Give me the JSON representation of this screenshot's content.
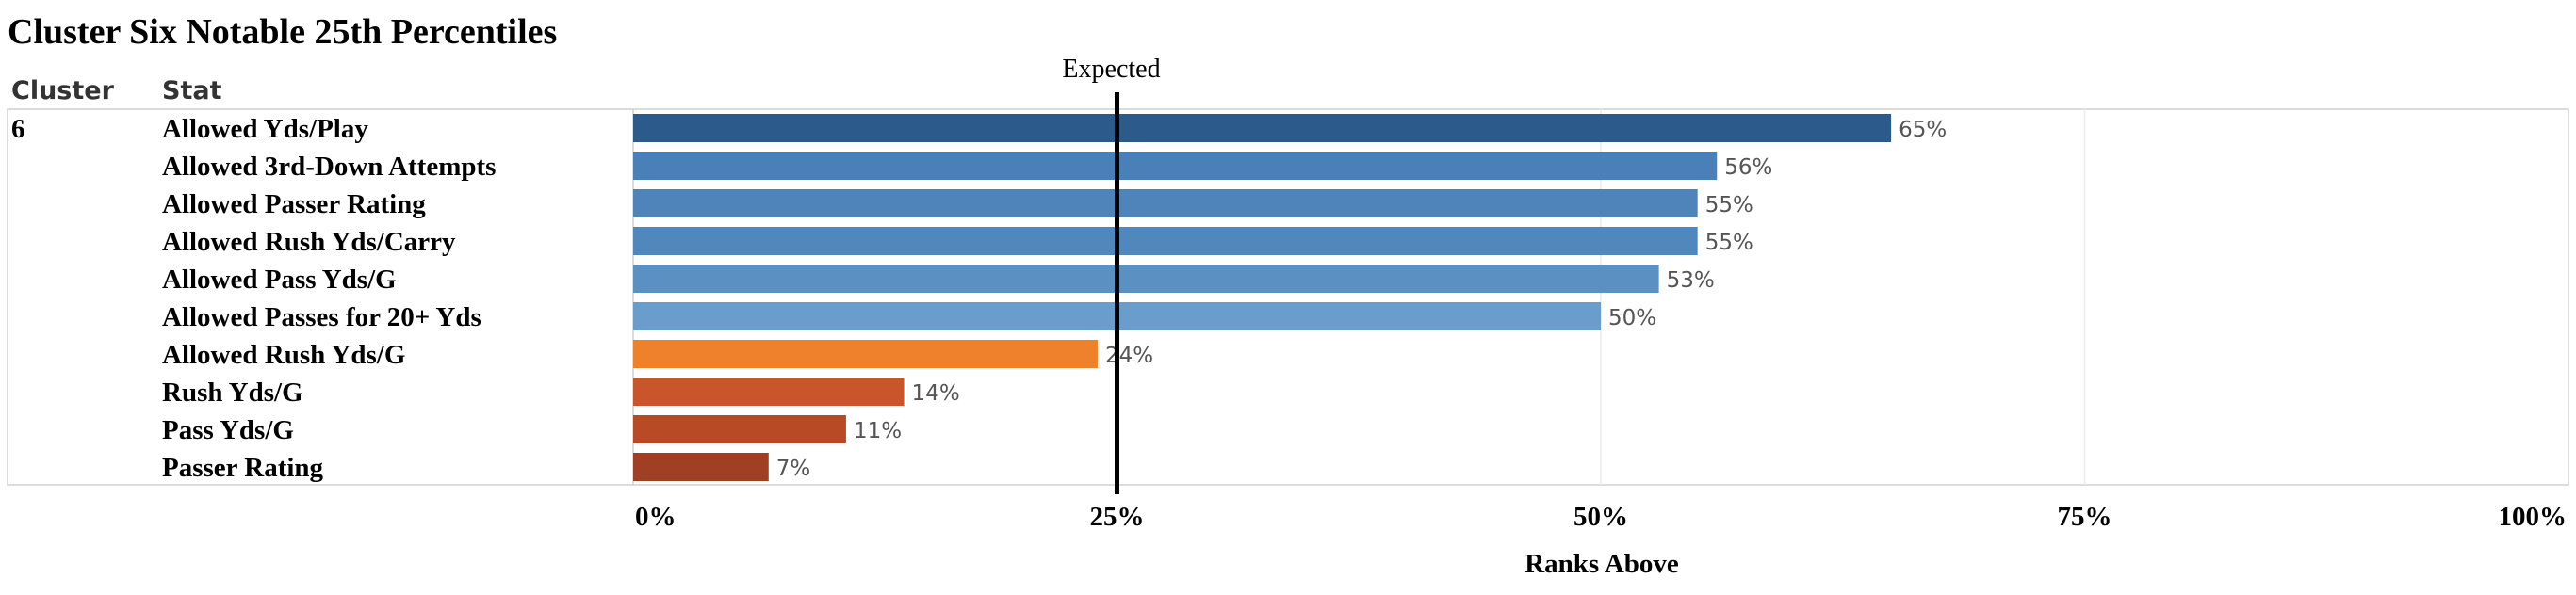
{
  "chart_data": {
    "type": "bar",
    "orientation": "horizontal",
    "title": "Cluster Six Notable 25th Percentiles",
    "column_headers": {
      "cluster": "Cluster",
      "stat": "Stat"
    },
    "cluster": "6",
    "categories": [
      "Allowed Yds/Play",
      "Allowed 3rd-Down Attempts",
      "Allowed Passer Rating",
      "Allowed Rush Yds/Carry",
      "Allowed Pass Yds/G",
      "Allowed Passes for 20+ Yds",
      "Allowed Rush Yds/G",
      "Rush Yds/G",
      "Pass Yds/G",
      "Passer Rating"
    ],
    "values": [
      65,
      56,
      55,
      55,
      53,
      50,
      24,
      14,
      11,
      7
    ],
    "value_labels": [
      "65%",
      "56%",
      "55%",
      "55%",
      "53%",
      "50%",
      "24%",
      "14%",
      "11%",
      "7%"
    ],
    "bar_colors": [
      "#2c5a8a",
      "#4a80b8",
      "#4f84ba",
      "#5087bc",
      "#5b90c2",
      "#6a9dcb",
      "#f0812b",
      "#c9552a",
      "#b94a26",
      "#a03f23"
    ],
    "xlabel": "Ranks Above",
    "xlim": [
      0,
      100
    ],
    "x_ticks": [
      {
        "value": 0,
        "label": "0%"
      },
      {
        "value": 25,
        "label": "25%"
      },
      {
        "value": 50,
        "label": "50%"
      },
      {
        "value": 75,
        "label": "75%"
      },
      {
        "value": 100,
        "label": "100%"
      }
    ],
    "reference_line": {
      "value": 25,
      "label": "Expected",
      "color": "#000000"
    },
    "grid": true
  }
}
